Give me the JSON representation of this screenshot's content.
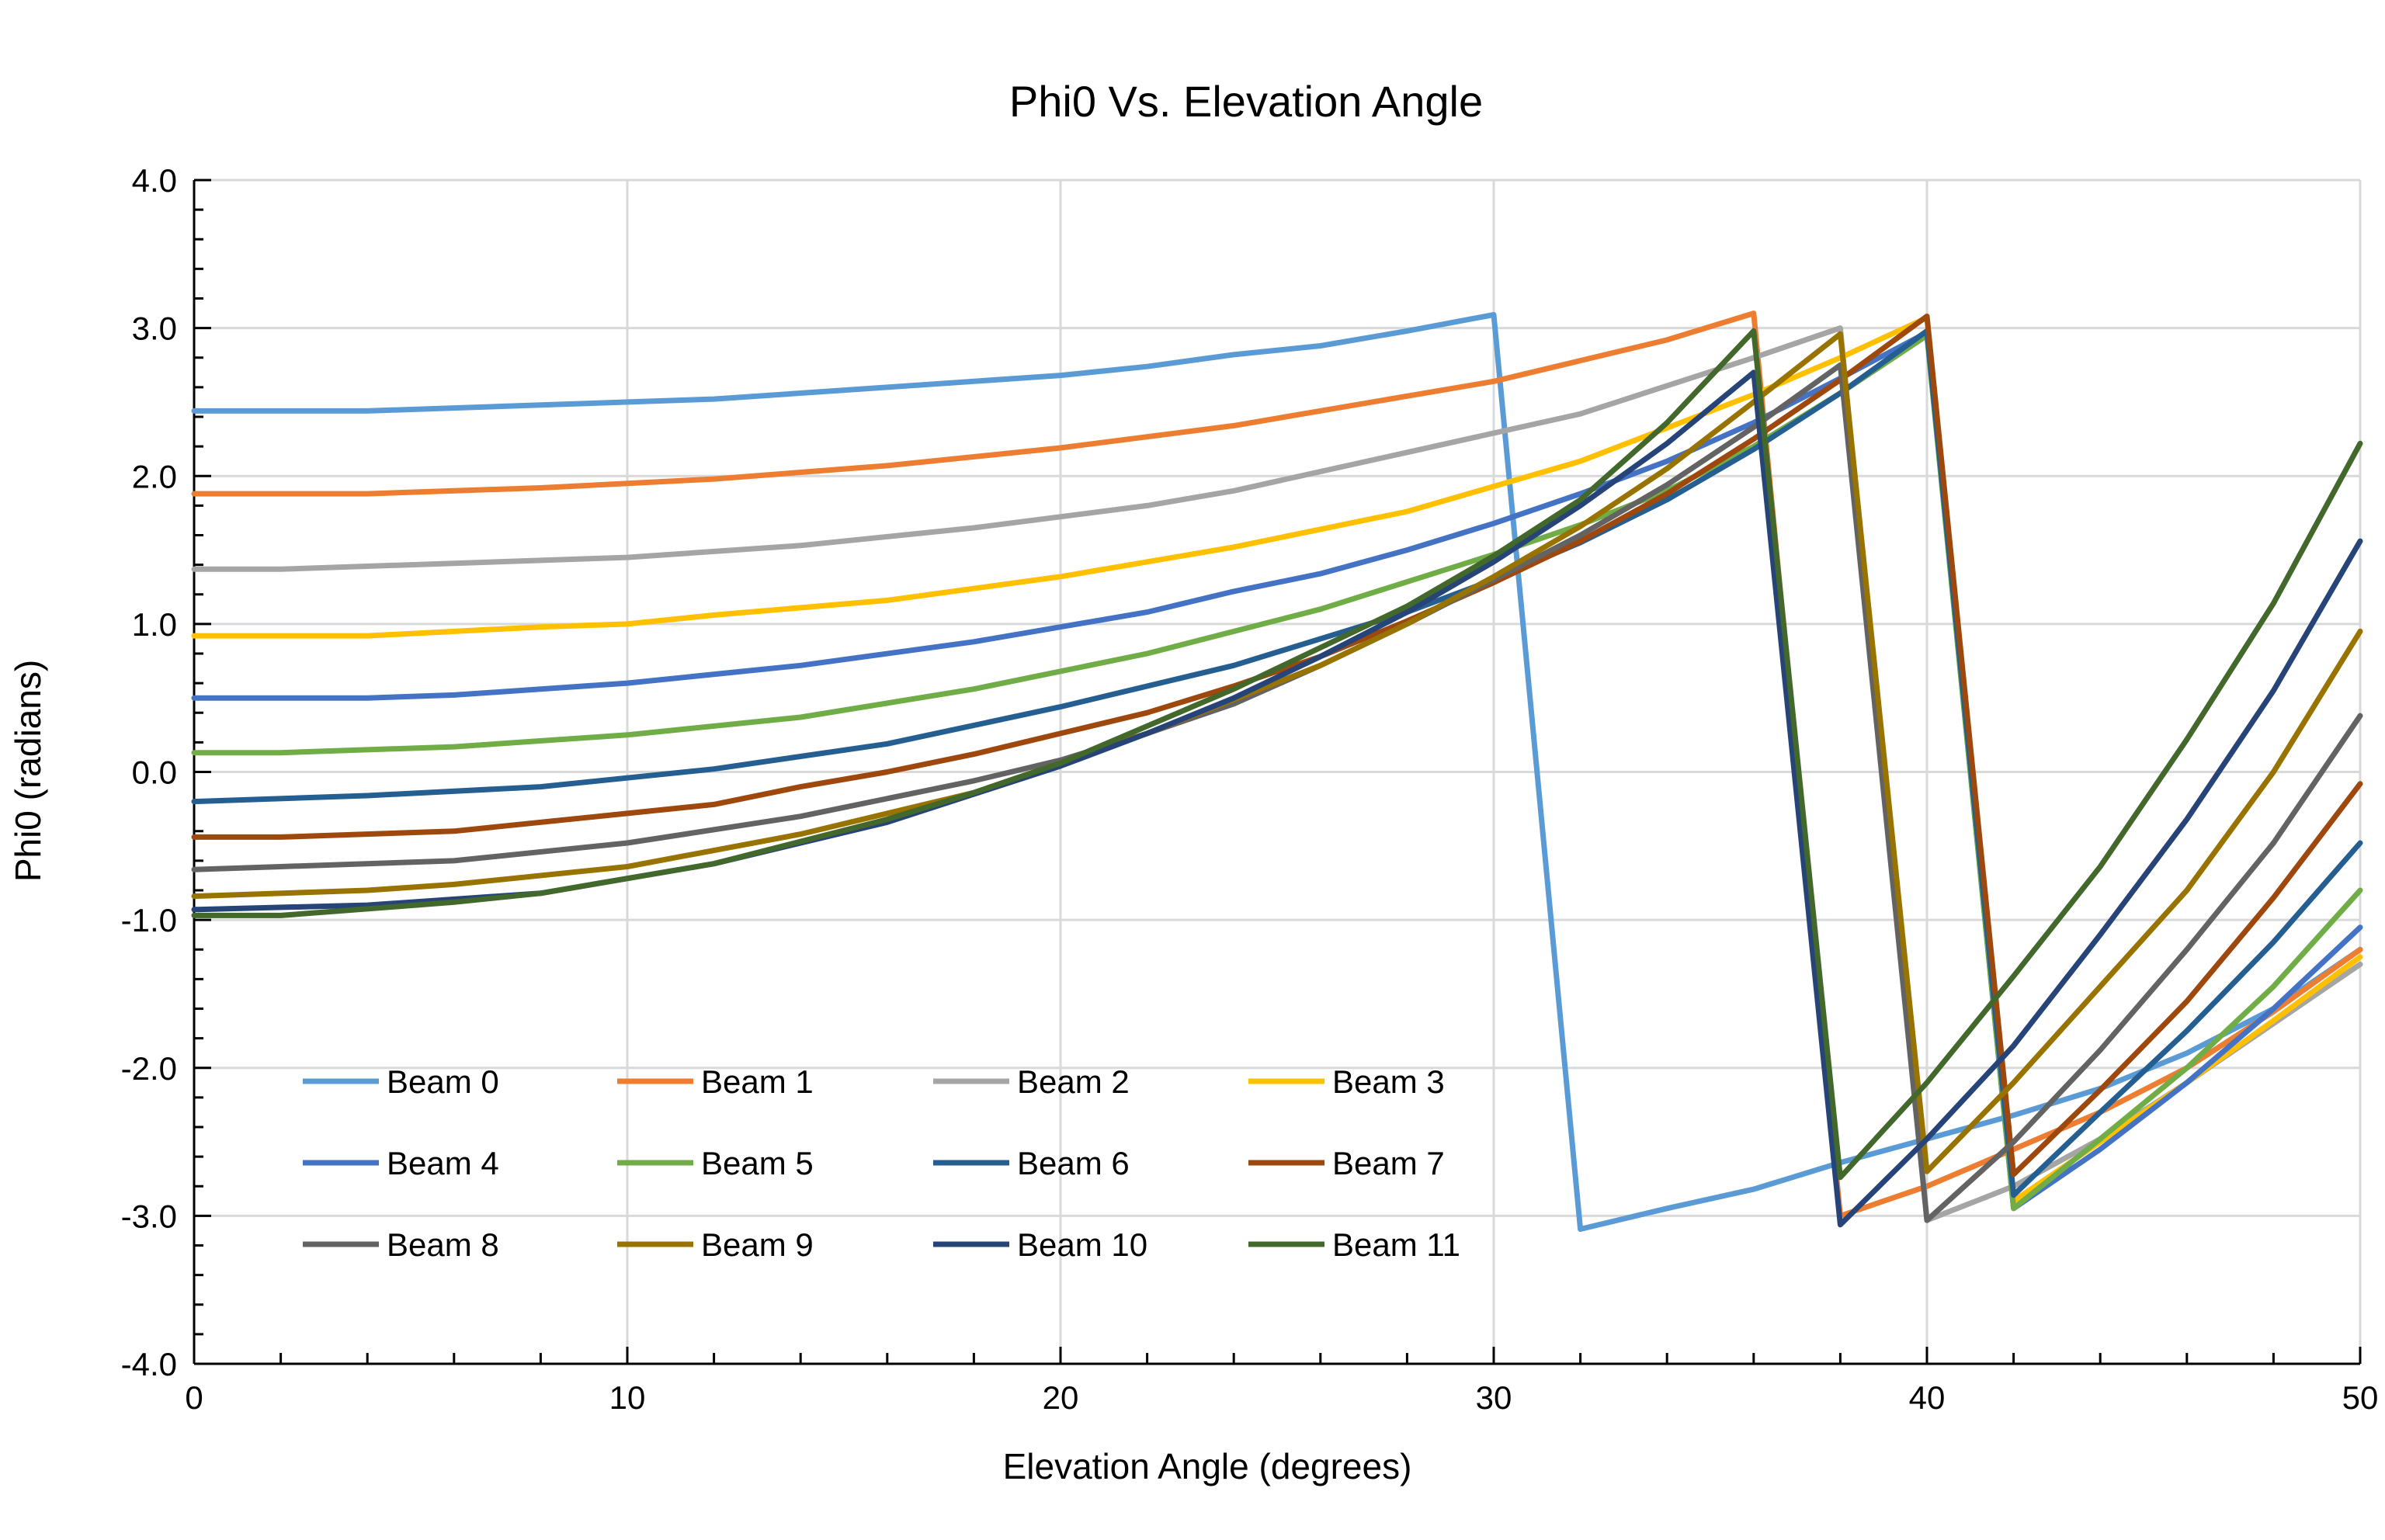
{
  "chart_data": {
    "type": "line",
    "title": "Phi0 Vs. Elevation Angle",
    "xlabel": "Elevation Angle (degrees)",
    "ylabel": "Phi0 (radians)",
    "xlim": [
      0,
      50
    ],
    "ylim": [
      -4,
      4
    ],
    "x_ticks": [
      0,
      10,
      20,
      30,
      40,
      50
    ],
    "x_tick_labels": [
      "0",
      "10",
      "20",
      "30",
      "40",
      "50"
    ],
    "y_ticks": [
      4,
      3,
      2,
      1,
      0,
      -1,
      -2,
      -3,
      -4
    ],
    "y_tick_labels": [
      "4.0",
      "3.0",
      "2.0",
      "1.0",
      "0.0",
      "-1.0",
      "-2.0",
      "-3.0",
      "-4.0"
    ],
    "grid": true,
    "legend_position": "bottom-left inside plot",
    "series": [
      {
        "name": "Beam 0",
        "color": "#5B9BD5",
        "x": [
          0,
          4,
          8,
          12,
          16,
          20,
          22,
          24,
          26,
          28,
          30,
          32,
          34,
          36,
          38,
          40,
          42,
          44,
          46,
          48,
          50
        ],
        "y": [
          2.44,
          2.44,
          2.48,
          2.52,
          2.6,
          2.68,
          2.74,
          2.82,
          2.88,
          2.98,
          3.09,
          -3.09,
          -2.95,
          -2.82,
          -2.64,
          -2.48,
          -2.32,
          -2.14,
          -1.9,
          -1.6,
          -1.2
        ]
      },
      {
        "name": "Beam 1",
        "color": "#ED7D31",
        "x": [
          0,
          4,
          8,
          12,
          16,
          20,
          24,
          28,
          30,
          34,
          36,
          38,
          40,
          42,
          44,
          46,
          48,
          50
        ],
        "y": [
          1.88,
          1.88,
          1.92,
          1.98,
          2.07,
          2.19,
          2.34,
          2.54,
          2.64,
          2.92,
          3.1,
          -3.0,
          -2.8,
          -2.55,
          -2.3,
          -2.0,
          -1.62,
          -1.2
        ]
      },
      {
        "name": "Beam 2",
        "color": "#A5A5A5",
        "x": [
          0,
          2,
          6,
          10,
          14,
          18,
          22,
          24,
          28,
          32,
          36,
          38,
          40,
          42,
          44,
          46,
          48,
          50
        ],
        "y": [
          1.37,
          1.37,
          1.41,
          1.45,
          1.53,
          1.65,
          1.8,
          1.9,
          2.16,
          2.42,
          2.8,
          3.0,
          -3.03,
          -2.8,
          -2.48,
          -2.1,
          -1.7,
          -1.3
        ]
      },
      {
        "name": "Beam 3",
        "color": "#FFC000",
        "x": [
          0,
          4,
          8,
          10,
          12,
          16,
          20,
          24,
          28,
          32,
          36,
          38,
          40,
          42,
          44,
          46,
          48,
          50
        ],
        "y": [
          0.92,
          0.92,
          0.98,
          1.0,
          1.06,
          1.16,
          1.32,
          1.52,
          1.76,
          2.1,
          2.55,
          2.8,
          3.07,
          -2.9,
          -2.5,
          -2.1,
          -1.68,
          -1.25
        ]
      },
      {
        "name": "Beam 4",
        "color": "#4472C4",
        "x": [
          0,
          4,
          6,
          10,
          14,
          18,
          20,
          22,
          24,
          26,
          28,
          30,
          32,
          34,
          36,
          38,
          40,
          42,
          44,
          46,
          48,
          50
        ],
        "y": [
          0.5,
          0.5,
          0.52,
          0.6,
          0.72,
          0.88,
          0.98,
          1.08,
          1.22,
          1.34,
          1.5,
          1.68,
          1.88,
          2.1,
          2.36,
          2.66,
          2.97,
          -2.95,
          -2.55,
          -2.1,
          -1.6,
          -1.05
        ]
      },
      {
        "name": "Beam 5",
        "color": "#70AD47",
        "x": [
          0,
          2,
          6,
          10,
          14,
          18,
          22,
          26,
          30,
          32,
          34,
          36,
          38,
          40,
          42,
          44,
          46,
          48,
          50
        ],
        "y": [
          0.13,
          0.13,
          0.17,
          0.25,
          0.37,
          0.56,
          0.8,
          1.1,
          1.47,
          1.67,
          1.9,
          2.2,
          2.56,
          2.95,
          -2.95,
          -2.48,
          -2.0,
          -1.45,
          -0.8
        ]
      },
      {
        "name": "Beam 6",
        "color": "#255E91",
        "x": [
          0,
          4,
          8,
          12,
          16,
          20,
          24,
          28,
          30,
          32,
          34,
          36,
          38,
          40,
          42,
          44,
          46,
          48,
          50
        ],
        "y": [
          -0.2,
          -0.16,
          -0.1,
          0.02,
          0.19,
          0.44,
          0.72,
          1.08,
          1.3,
          1.55,
          1.84,
          2.18,
          2.56,
          2.98,
          -2.86,
          -2.3,
          -1.75,
          -1.15,
          -0.48
        ]
      },
      {
        "name": "Beam 7",
        "color": "#9E480E",
        "x": [
          0,
          2,
          6,
          10,
          12,
          14,
          16,
          18,
          20,
          22,
          24,
          26,
          28,
          30,
          32,
          34,
          36,
          38,
          40,
          42,
          44,
          46,
          48,
          50
        ],
        "y": [
          -0.44,
          -0.44,
          -0.4,
          -0.28,
          -0.22,
          -0.1,
          0.0,
          0.12,
          0.26,
          0.4,
          0.58,
          0.78,
          1.02,
          1.28,
          1.56,
          1.88,
          2.25,
          2.65,
          3.08,
          -2.72,
          -2.15,
          -1.55,
          -0.85,
          -0.08
        ]
      },
      {
        "name": "Beam 8",
        "color": "#636363",
        "x": [
          0,
          2,
          6,
          10,
          14,
          18,
          20,
          22,
          24,
          26,
          28,
          30,
          32,
          34,
          36,
          38,
          40,
          42,
          44,
          46,
          48,
          50
        ],
        "y": [
          -0.66,
          -0.64,
          -0.6,
          -0.48,
          -0.3,
          -0.06,
          0.08,
          0.26,
          0.46,
          0.72,
          1.0,
          1.3,
          1.6,
          1.94,
          2.33,
          2.75,
          -3.03,
          -2.5,
          -1.88,
          -1.2,
          -0.48,
          0.38
        ]
      },
      {
        "name": "Beam 9",
        "color": "#997300",
        "x": [
          0,
          4,
          6,
          10,
          14,
          18,
          22,
          26,
          28,
          30,
          32,
          34,
          36,
          38,
          40,
          42,
          44,
          46,
          48,
          50
        ],
        "y": [
          -0.84,
          -0.8,
          -0.76,
          -0.64,
          -0.42,
          -0.14,
          0.26,
          0.72,
          1.0,
          1.32,
          1.66,
          2.05,
          2.5,
          2.96,
          -2.7,
          -2.1,
          -1.45,
          -0.8,
          0.0,
          0.95
        ]
      },
      {
        "name": "Beam 10",
        "color": "#264478",
        "x": [
          0,
          4,
          8,
          12,
          16,
          20,
          22,
          24,
          26,
          28,
          30,
          32,
          34,
          36,
          38,
          40,
          42,
          44,
          46,
          48,
          50
        ],
        "y": [
          -0.93,
          -0.9,
          -0.82,
          -0.62,
          -0.34,
          0.04,
          0.26,
          0.5,
          0.78,
          1.08,
          1.42,
          1.8,
          2.22,
          2.7,
          -3.06,
          -2.48,
          -1.85,
          -1.1,
          -0.32,
          0.55,
          1.56
        ]
      },
      {
        "name": "Beam 11",
        "color": "#43682B",
        "x": [
          0,
          2,
          6,
          8,
          12,
          16,
          18,
          20,
          24,
          28,
          30,
          32,
          34,
          36,
          38,
          40,
          42,
          44,
          46,
          48,
          50
        ],
        "y": [
          -0.97,
          -0.97,
          -0.88,
          -0.82,
          -0.62,
          -0.32,
          -0.14,
          0.06,
          0.56,
          1.12,
          1.46,
          1.84,
          2.36,
          2.98,
          -2.74,
          -2.1,
          -1.38,
          -0.64,
          0.22,
          1.14,
          2.22
        ]
      }
    ]
  }
}
